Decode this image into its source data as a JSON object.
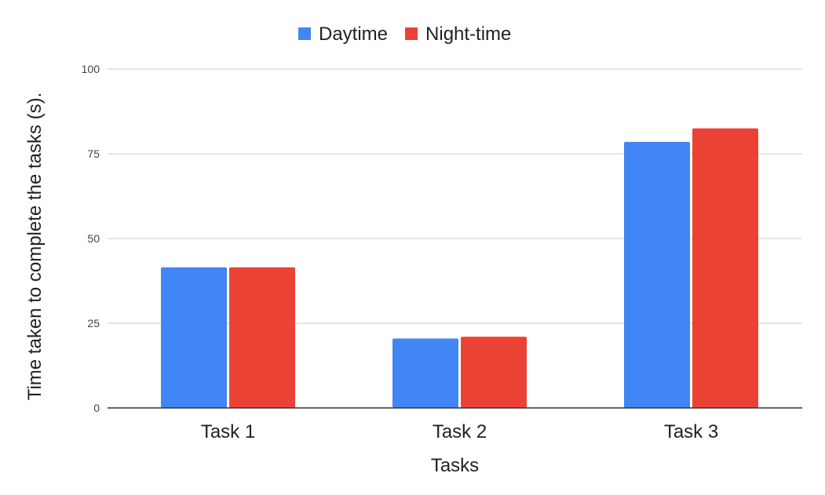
{
  "chart_data": {
    "type": "bar",
    "title": "",
    "xlabel": "Tasks",
    "ylabel": "Time taken to complete the tasks (s).",
    "categories": [
      "Task 1",
      "Task 2",
      "Task 3"
    ],
    "series": [
      {
        "name": "Daytime",
        "values": [
          41.5,
          20.5,
          78.5
        ],
        "color": "#4285F4"
      },
      {
        "name": "Night-time",
        "values": [
          41.5,
          21,
          82.5
        ],
        "color": "#EA4335"
      }
    ],
    "ylim": [
      0,
      100
    ],
    "yticks": [
      "0",
      "25",
      "50",
      "75",
      "100"
    ],
    "grid": true,
    "legend_position": "top-center",
    "gridline_color": "#cccccc",
    "axis_color": "#333333"
  }
}
